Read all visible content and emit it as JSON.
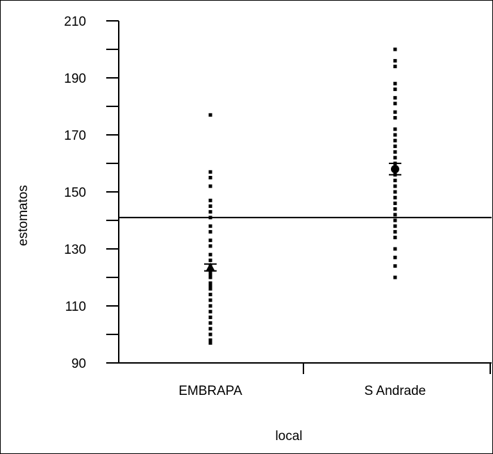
{
  "chart_data": {
    "type": "scatter",
    "title": "",
    "xlabel": "local",
    "ylabel": "estomatos",
    "ylim": [
      90,
      210
    ],
    "y_ticks": [
      90,
      110,
      130,
      150,
      170,
      190,
      210
    ],
    "categories": [
      "EMBRAPA",
      "S Andrade"
    ],
    "reference_line": 141,
    "grid": false,
    "series": [
      {
        "values": [
          [
            97,
            98,
            100,
            102,
            104,
            106,
            108,
            110,
            112,
            114,
            116,
            117,
            118,
            120,
            121,
            122,
            124,
            126,
            128,
            131,
            133,
            136,
            138,
            141,
            143,
            145,
            147,
            152,
            155,
            157,
            177
          ],
          [
            120,
            124,
            127,
            130,
            134,
            136,
            138,
            140,
            142,
            144,
            146,
            148,
            150,
            152,
            154,
            156,
            158,
            160,
            162,
            164,
            166,
            168,
            170,
            172,
            176,
            178,
            181,
            183,
            186,
            188,
            194,
            196,
            200
          ]
        ],
        "mean": [
          123.5,
          158
        ],
        "se": [
          1.2,
          2
        ]
      }
    ]
  },
  "colors": {
    "ink": "#000000",
    "background": "#ffffff"
  },
  "markers": [
    "triangle",
    "circle"
  ]
}
